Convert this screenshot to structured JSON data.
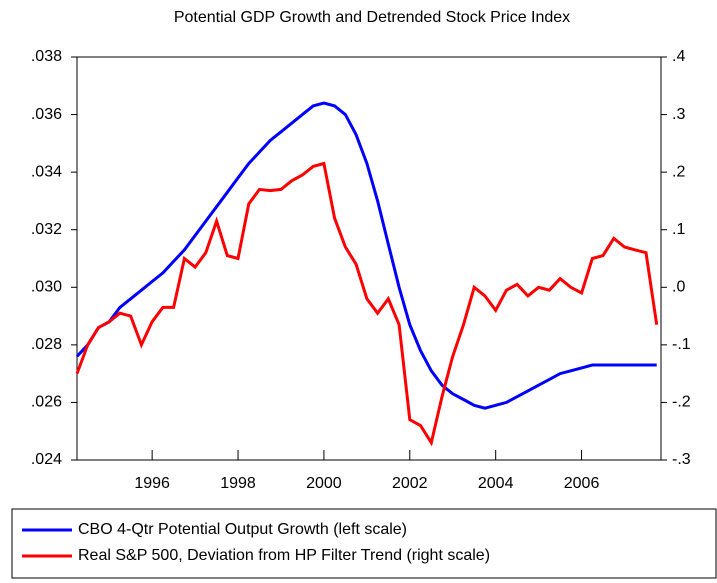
{
  "chart_data": {
    "type": "line",
    "title": "Potential GDP Growth and Detrended Stock Price Index",
    "x": [
      1994.25,
      1994.5,
      1994.75,
      1995.0,
      1995.25,
      1995.5,
      1995.75,
      1996.0,
      1996.25,
      1996.5,
      1996.75,
      1997.0,
      1997.25,
      1997.5,
      1997.75,
      1998.0,
      1998.25,
      1998.5,
      1998.75,
      1999.0,
      1999.25,
      1999.5,
      1999.75,
      2000.0,
      2000.25,
      2000.5,
      2000.75,
      2001.0,
      2001.25,
      2001.5,
      2001.75,
      2002.0,
      2002.25,
      2002.5,
      2002.75,
      2003.0,
      2003.25,
      2003.5,
      2003.75,
      2004.0,
      2004.25,
      2004.5,
      2004.75,
      2005.0,
      2005.25,
      2005.5,
      2005.75,
      2006.0,
      2006.25,
      2006.5,
      2006.75,
      2007.0,
      2007.25,
      2007.5,
      2007.75
    ],
    "xlim": [
      1994.25,
      2007.85
    ],
    "xticks": [
      1996,
      1998,
      2000,
      2002,
      2004,
      2006
    ],
    "ylim": [
      0.024,
      0.038
    ],
    "yticks": [
      {
        "value": 0.024,
        "label": ".024"
      },
      {
        "value": 0.026,
        "label": ".026"
      },
      {
        "value": 0.028,
        "label": ".028"
      },
      {
        "value": 0.03,
        "label": ".030"
      },
      {
        "value": 0.032,
        "label": ".032"
      },
      {
        "value": 0.034,
        "label": ".034"
      },
      {
        "value": 0.036,
        "label": ".036"
      },
      {
        "value": 0.038,
        "label": ".038"
      }
    ],
    "y2lim": [
      -0.3,
      0.4
    ],
    "y2ticks": [
      {
        "value": -0.3,
        "label": "-.3"
      },
      {
        "value": -0.2,
        "label": "-.2"
      },
      {
        "value": -0.1,
        "label": "-.1"
      },
      {
        "value": 0.0,
        "label": ".0"
      },
      {
        "value": 0.1,
        "label": ".1"
      },
      {
        "value": 0.2,
        "label": ".2"
      },
      {
        "value": 0.3,
        "label": ".3"
      },
      {
        "value": 0.4,
        "label": ".4"
      }
    ],
    "series": [
      {
        "name": "CBO 4-Qtr Potential Output Growth (left scale)",
        "color": "#0000ff",
        "values": [
          0.0276,
          0.028,
          0.0286,
          0.0288,
          0.0293,
          0.0296,
          0.0299,
          0.0302,
          0.0305,
          0.0309,
          0.0313,
          0.0318,
          0.0323,
          0.0328,
          0.0333,
          0.0338,
          0.0343,
          0.0347,
          0.0351,
          0.0354,
          0.0357,
          0.036,
          0.0363,
          0.0364,
          0.0363,
          0.036,
          0.0353,
          0.0343,
          0.033,
          0.0315,
          0.03,
          0.0287,
          0.0278,
          0.0271,
          0.0266,
          0.0263,
          0.0261,
          0.0259,
          0.0258,
          0.0259,
          0.026,
          0.0262,
          0.0264,
          0.0266,
          0.0268,
          0.027,
          0.0271,
          0.0272,
          0.0273,
          0.0273,
          0.0273,
          0.0273,
          0.0273,
          0.0273,
          0.0273
        ]
      },
      {
        "name": "Real S&P 500, Deviation from HP Filter Trend (right scale)",
        "color": "#ff0000",
        "axis": "y2",
        "values": [
          -0.15,
          -0.1,
          -0.07,
          -0.06,
          -0.045,
          -0.05,
          -0.1,
          -0.06,
          -0.035,
          -0.035,
          0.05,
          0.035,
          0.06,
          0.115,
          0.055,
          0.05,
          0.145,
          0.17,
          0.168,
          0.17,
          0.185,
          0.195,
          0.21,
          0.215,
          0.12,
          0.07,
          0.04,
          -0.02,
          -0.045,
          -0.02,
          -0.065,
          -0.23,
          -0.24,
          -0.27,
          -0.19,
          -0.12,
          -0.065,
          0.0,
          -0.015,
          -0.04,
          -0.005,
          0.005,
          -0.015,
          0.0,
          -0.005,
          0.015,
          0.0,
          -0.01,
          0.05,
          0.055,
          0.085,
          0.07,
          0.065,
          0.06,
          -0.065
        ]
      }
    ]
  }
}
